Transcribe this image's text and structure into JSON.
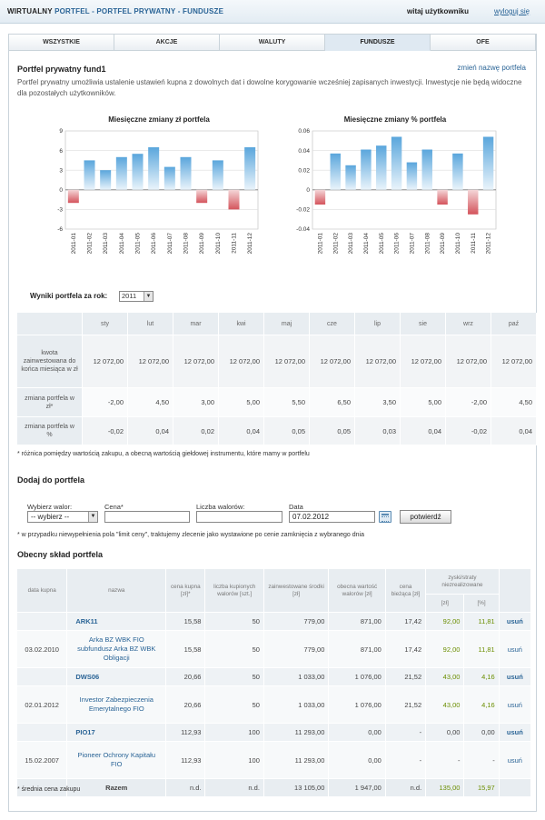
{
  "header": {
    "brand": "WIRTUALNY",
    "path": "PORTFEL - PORTFEL PRYWATNY - FUNDUSZE",
    "welcome": "witaj użytkowniku",
    "logout": "wyloguj się"
  },
  "tabs": [
    "WSZYSTKIE",
    "AKCJE",
    "WALUTY",
    "FUNDUSZE",
    "OFE"
  ],
  "portfolio": {
    "name": "Portfel prywatny fund1",
    "rename": "zmień nazwę portfela",
    "intro": "Portfel prywatny umożliwia ustalenie ustawień kupna z dowolnych dat i dowolne korygowanie wcześniej zapisanych inwestycji. Inwestycje nie będą widoczne dla pozostałych użytkowników."
  },
  "chart_data": [
    {
      "type": "bar",
      "title": "Miesięczne zmiany zł portfela",
      "categories": [
        "2011-01",
        "2011-02",
        "2011-03",
        "2011-04",
        "2011-05",
        "2011-06",
        "2011-07",
        "2011-08",
        "2011-09",
        "2011-10",
        "2011-11",
        "2011-12"
      ],
      "values": [
        -2.0,
        4.5,
        3.0,
        5.0,
        5.5,
        6.5,
        3.5,
        5.0,
        -2.0,
        4.5,
        -3.0,
        6.5
      ],
      "yticks": [
        "9",
        "6",
        "3",
        "0",
        "-3",
        "-6"
      ],
      "ylim": [
        -6,
        9
      ],
      "grid": true
    },
    {
      "type": "bar",
      "title": "Miesięczne zmiany % portfela",
      "categories": [
        "2011-01",
        "2011-02",
        "2011-03",
        "2011-04",
        "2011-05",
        "2011-06",
        "2011-07",
        "2011-08",
        "2011-09",
        "2011-10",
        "2011-11",
        "2011-12"
      ],
      "values": [
        -0.015,
        0.037,
        0.025,
        0.041,
        0.045,
        0.054,
        0.028,
        0.041,
        -0.015,
        0.037,
        -0.025,
        0.054
      ],
      "yticks": [
        "0.06",
        "0.04",
        "0.02",
        "0",
        "-0.02",
        "-0.04"
      ],
      "ylim": [
        -0.04,
        0.06
      ],
      "grid": true
    }
  ],
  "results": {
    "label": "Wyniki portfela za rok:",
    "year": "2011",
    "months": [
      "sty",
      "lut",
      "mar",
      "kwi",
      "maj",
      "cze",
      "lip",
      "sie",
      "wrz",
      "paź"
    ],
    "row1_label": "kwota zainwestowana do końca miesiąca w zł",
    "row1": [
      "12 072,00",
      "12 072,00",
      "12 072,00",
      "12 072,00",
      "12 072,00",
      "12 072,00",
      "12 072,00",
      "12 072,00",
      "12 072,00",
      "12 072,00"
    ],
    "row2_label": "zmiana portfela w zł*",
    "row2": [
      "-2,00",
      "4,50",
      "3,00",
      "5,00",
      "5,50",
      "6,50",
      "3,50",
      "5,00",
      "-2,00",
      "4,50"
    ],
    "row3_label": "zmiana portfela w %",
    "row3": [
      "-0,02",
      "0,04",
      "0,02",
      "0,04",
      "0,05",
      "0,05",
      "0,03",
      "0,04",
      "-0,02",
      "0,04"
    ],
    "footnote": "* różnica pomiędzy wartością zakupu, a obecną wartością giełdowej instrumentu, które mamy w portfelu"
  },
  "add": {
    "title": "Dodaj do portfela",
    "label_fund": "Wybierz walor:",
    "select_value": "-- wybierz --",
    "label_price": "Cena*",
    "label_qty": "Liczba walorów:",
    "label_date": "Data",
    "date_value": "07.02.2012",
    "confirm": "potwierdź",
    "footnote": "* w przypadku niewypełnienia pola \"limit ceny\", traktujemy zlecenie jako wystawione po cenie zamknięcia z wybranego dnia"
  },
  "composition": {
    "title": "Obecny skład portfela",
    "headers": {
      "date": "data kupna",
      "name": "nazwa",
      "price": "cena kupna [zł]*",
      "units": "liczba kupionych walorów [szt.]",
      "invested": "zainwestowane środki [zł]",
      "value": "obecna wartość walorów [zł]",
      "current": "cena bieżąca [zł]",
      "pl": "zyski/straty niezrealizowane",
      "pl_zl": "[zł]",
      "pl_pct": "[%]"
    },
    "rows": [
      {
        "kind": "sum",
        "date": "",
        "name": "ARK11",
        "price": "15,58",
        "units": "50",
        "invested": "779,00",
        "value": "871,00",
        "current": "17,42",
        "pl_zl": "92,00",
        "pl_pct": "11,81",
        "action": "usuń"
      },
      {
        "kind": "det",
        "date": "03.02.2010",
        "name": "Arka BZ WBK FIO subfundusz Arka BZ WBK Obligacji",
        "price": "15,58",
        "units": "50",
        "invested": "779,00",
        "value": "871,00",
        "current": "17,42",
        "pl_zl": "92,00",
        "pl_pct": "11,81",
        "action": "usuń"
      },
      {
        "kind": "sum",
        "date": "",
        "name": "DWS06",
        "price": "20,66",
        "units": "50",
        "invested": "1 033,00",
        "value": "1 076,00",
        "current": "21,52",
        "pl_zl": "43,00",
        "pl_pct": "4,16",
        "action": "usuń"
      },
      {
        "kind": "det",
        "date": "02.01.2012",
        "name": "Investor Zabezpieczenia Emerytalnego FIO",
        "price": "20,66",
        "units": "50",
        "invested": "1 033,00",
        "value": "1 076,00",
        "current": "21,52",
        "pl_zl": "43,00",
        "pl_pct": "4,16",
        "action": "usuń"
      },
      {
        "kind": "sum",
        "date": "",
        "name": "PIO17",
        "price": "112,93",
        "units": "100",
        "invested": "11 293,00",
        "value": "0,00",
        "current": "-",
        "pl_zl": "0,00",
        "pl_pct": "0,00",
        "action": "usuń"
      },
      {
        "kind": "det",
        "date": "15.02.2007",
        "name": "Pioneer Ochrony Kapitału FIO",
        "price": "112,93",
        "units": "100",
        "invested": "11 293,00",
        "value": "0,00",
        "current": "-",
        "pl_zl": "-",
        "pl_pct": "-",
        "action": "usuń"
      }
    ],
    "total": {
      "label": "Razem",
      "price": "n.d.",
      "units": "n.d.",
      "invested": "13 105,00",
      "value": "1 947,00",
      "current": "n.d.",
      "pl_zl": "135,00",
      "pl_pct": "15,97"
    },
    "footnote": "* średnia cena zakupu"
  },
  "colors": {
    "bar_positive": "#5aa6dc",
    "bar_negative": "#d4545c",
    "link": "#2a6496",
    "profit": "#6b8e00"
  }
}
